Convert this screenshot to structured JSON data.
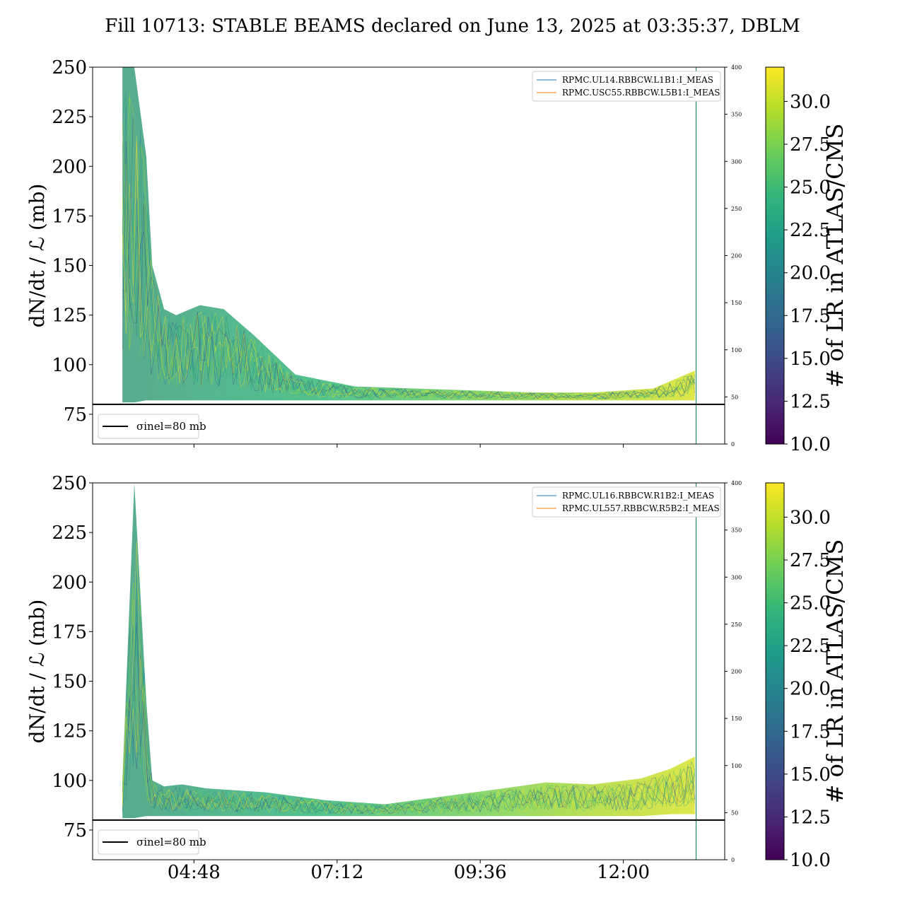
{
  "chart_data": {
    "type": "line",
    "title": "Fill 10713: STABLE BEAMS declared on June 13, 2025 at 03:35:37, DBLM",
    "x_tick_labels": [
      "04:48",
      "07:12",
      "09:36",
      "12:00"
    ],
    "x_ticks_hours": [
      4.8,
      7.2,
      9.6,
      12.0
    ],
    "x_range_hours": [
      3.1,
      13.7
    ],
    "reference_line": {
      "label": "σinel=80 mb",
      "value": 80,
      "color": "#000000"
    },
    "colorbar": {
      "label": "# of LR in ATLAS/CMS",
      "range": [
        10.0,
        32.0
      ],
      "ticks": [
        "10.0",
        "12.5",
        "15.0",
        "17.5",
        "20.0",
        "22.5",
        "25.0",
        "27.5",
        "30.0"
      ],
      "colormap": [
        "#440154",
        "#482878",
        "#3e4989",
        "#31688e",
        "#26828e",
        "#1f9e89",
        "#35b779",
        "#6ece58",
        "#b5de2b",
        "#fde725"
      ]
    },
    "panels": [
      {
        "ylabel": "dN/dt / ℒ (mb)",
        "ylim": [
          60,
          250
        ],
        "y_ticks": [
          "75",
          "100",
          "125",
          "150",
          "175",
          "200",
          "225",
          "250"
        ],
        "right_axis_range": [
          0,
          400
        ],
        "right_ticks": [
          "0",
          "50",
          "100",
          "150",
          "200",
          "250",
          "300",
          "350",
          "400"
        ],
        "legend": [
          {
            "name": "RPMC.UL14.RBBCW.L1B1:I_MEAS",
            "color": "#1f77b4"
          },
          {
            "name": "RPMC.USC55.RBBCW.L5B1:I_MEAS",
            "color": "#ff7f0e"
          }
        ],
        "vertical_marker_hours": 13.22,
        "envelope": {
          "x": [
            3.6,
            3.8,
            4.0,
            4.1,
            4.3,
            4.5,
            4.9,
            5.3,
            5.8,
            6.5,
            7.5,
            8.5,
            9.5,
            10.5,
            11.5,
            12.5,
            13.2
          ],
          "upper": [
            250,
            250,
            205,
            150,
            128,
            125,
            130,
            128,
            115,
            95,
            89,
            88,
            87,
            86,
            86,
            88,
            97
          ],
          "lower": [
            81,
            81,
            82,
            82,
            82,
            82,
            82,
            82,
            82,
            82,
            82,
            82,
            82,
            82,
            82,
            82,
            82
          ]
        }
      },
      {
        "ylabel": "dN/dt / ℒ (mb)",
        "ylim": [
          60,
          250
        ],
        "y_ticks": [
          "75",
          "100",
          "125",
          "150",
          "175",
          "200",
          "225",
          "250"
        ],
        "right_axis_range": [
          0,
          400
        ],
        "right_ticks": [
          "0",
          "50",
          "100",
          "150",
          "200",
          "250",
          "300",
          "350",
          "400"
        ],
        "legend": [
          {
            "name": "RPMC.UL16.RBBCW.R1B2:I_MEAS",
            "color": "#1f77b4"
          },
          {
            "name": "RPMC.UL557.RBBCW.R5B2:I_MEAS",
            "color": "#ff7f0e"
          }
        ],
        "vertical_marker_hours": 13.22,
        "envelope": {
          "x": [
            3.6,
            3.8,
            4.0,
            4.1,
            4.3,
            4.6,
            5.0,
            6.0,
            7.0,
            8.0,
            9.0,
            10.0,
            10.7,
            11.5,
            12.3,
            12.8,
            13.2
          ],
          "upper": [
            100,
            250,
            140,
            100,
            97,
            98,
            96,
            94,
            90,
            88,
            92,
            96,
            99,
            98,
            101,
            106,
            112
          ],
          "lower": [
            81,
            81,
            82,
            82,
            82,
            82,
            82,
            82,
            82,
            82,
            82,
            82,
            82,
            82,
            82,
            83,
            83
          ]
        }
      }
    ]
  }
}
